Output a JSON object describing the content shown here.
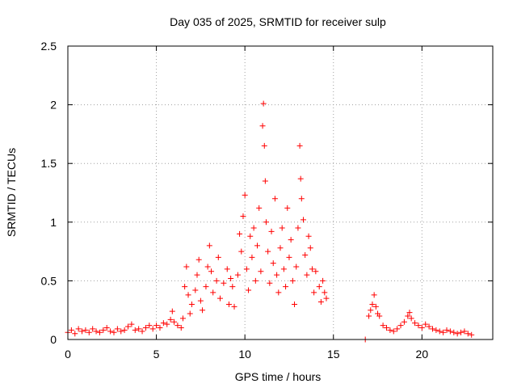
{
  "chart_data": {
    "type": "scatter",
    "title": "Day 035 of 2025, SRMTID for receiver sulp",
    "xlabel": "GPS time / hours",
    "ylabel": "SRMTID / TECUs",
    "xlim": [
      0,
      24
    ],
    "ylim": [
      0,
      2.5
    ],
    "xticks": [
      0,
      5,
      10,
      15,
      20
    ],
    "yticks": [
      0,
      0.5,
      1,
      1.5,
      2,
      2.5
    ],
    "xtick_labels": [
      "0",
      "5",
      "10",
      "15",
      "20"
    ],
    "ytick_labels": [
      "0",
      "0.5",
      "1",
      "1.5",
      "2",
      "2.5"
    ],
    "grid": true,
    "marker": "+",
    "series": [
      {
        "name": "SRMTID",
        "color": "#ff0000",
        "points": [
          [
            0.0,
            0.06
          ],
          [
            0.2,
            0.08
          ],
          [
            0.4,
            0.05
          ],
          [
            0.6,
            0.09
          ],
          [
            0.8,
            0.07
          ],
          [
            1.0,
            0.08
          ],
          [
            1.2,
            0.06
          ],
          [
            1.4,
            0.09
          ],
          [
            1.6,
            0.07
          ],
          [
            1.8,
            0.06
          ],
          [
            2.0,
            0.08
          ],
          [
            2.2,
            0.1
          ],
          [
            2.4,
            0.07
          ],
          [
            2.6,
            0.06
          ],
          [
            2.8,
            0.09
          ],
          [
            3.0,
            0.07
          ],
          [
            3.2,
            0.08
          ],
          [
            3.4,
            0.11
          ],
          [
            3.6,
            0.13
          ],
          [
            3.8,
            0.08
          ],
          [
            4.0,
            0.09
          ],
          [
            4.2,
            0.07
          ],
          [
            4.4,
            0.1
          ],
          [
            4.6,
            0.12
          ],
          [
            4.8,
            0.09
          ],
          [
            5.0,
            0.12
          ],
          [
            5.2,
            0.1
          ],
          [
            5.4,
            0.14
          ],
          [
            5.6,
            0.13
          ],
          [
            5.8,
            0.17
          ],
          [
            5.9,
            0.24
          ],
          [
            6.0,
            0.15
          ],
          [
            6.2,
            0.12
          ],
          [
            6.4,
            0.1
          ],
          [
            6.5,
            0.18
          ],
          [
            6.6,
            0.45
          ],
          [
            6.7,
            0.62
          ],
          [
            6.8,
            0.38
          ],
          [
            6.9,
            0.22
          ],
          [
            7.0,
            0.3
          ],
          [
            7.2,
            0.42
          ],
          [
            7.3,
            0.55
          ],
          [
            7.4,
            0.68
          ],
          [
            7.5,
            0.33
          ],
          [
            7.6,
            0.25
          ],
          [
            7.8,
            0.45
          ],
          [
            7.9,
            0.62
          ],
          [
            8.0,
            0.8
          ],
          [
            8.1,
            0.58
          ],
          [
            8.2,
            0.4
          ],
          [
            8.4,
            0.5
          ],
          [
            8.5,
            0.7
          ],
          [
            8.6,
            0.35
          ],
          [
            8.8,
            0.48
          ],
          [
            9.0,
            0.6
          ],
          [
            9.1,
            0.3
          ],
          [
            9.2,
            0.52
          ],
          [
            9.3,
            0.45
          ],
          [
            9.4,
            0.28
          ],
          [
            9.6,
            0.55
          ],
          [
            9.7,
            0.9
          ],
          [
            9.8,
            0.75
          ],
          [
            9.9,
            1.05
          ],
          [
            10.0,
            1.23
          ],
          [
            10.1,
            0.6
          ],
          [
            10.2,
            0.42
          ],
          [
            10.3,
            0.88
          ],
          [
            10.4,
            0.7
          ],
          [
            10.5,
            0.95
          ],
          [
            10.6,
            0.5
          ],
          [
            10.7,
            0.8
          ],
          [
            10.8,
            1.12
          ],
          [
            10.9,
            0.58
          ],
          [
            11.0,
            1.82
          ],
          [
            11.05,
            2.01
          ],
          [
            11.1,
            1.65
          ],
          [
            11.15,
            1.35
          ],
          [
            11.2,
            1.0
          ],
          [
            11.3,
            0.75
          ],
          [
            11.4,
            0.48
          ],
          [
            11.5,
            0.92
          ],
          [
            11.6,
            0.65
          ],
          [
            11.7,
            1.2
          ],
          [
            11.8,
            0.55
          ],
          [
            11.9,
            0.4
          ],
          [
            12.0,
            0.78
          ],
          [
            12.1,
            0.95
          ],
          [
            12.2,
            0.6
          ],
          [
            12.3,
            0.45
          ],
          [
            12.4,
            1.12
          ],
          [
            12.5,
            0.7
          ],
          [
            12.6,
            0.85
          ],
          [
            12.7,
            0.5
          ],
          [
            12.8,
            0.3
          ],
          [
            12.9,
            0.62
          ],
          [
            13.0,
            0.95
          ],
          [
            13.1,
            1.65
          ],
          [
            13.15,
            1.37
          ],
          [
            13.2,
            1.2
          ],
          [
            13.3,
            1.02
          ],
          [
            13.4,
            0.72
          ],
          [
            13.5,
            0.55
          ],
          [
            13.6,
            0.88
          ],
          [
            13.7,
            0.78
          ],
          [
            13.8,
            0.6
          ],
          [
            13.9,
            0.4
          ],
          [
            14.0,
            0.58
          ],
          [
            14.2,
            0.45
          ],
          [
            14.3,
            0.32
          ],
          [
            14.4,
            0.5
          ],
          [
            14.5,
            0.4
          ],
          [
            14.6,
            0.35
          ],
          [
            16.8,
            0.0
          ],
          [
            17.0,
            0.2
          ],
          [
            17.1,
            0.25
          ],
          [
            17.2,
            0.3
          ],
          [
            17.3,
            0.38
          ],
          [
            17.4,
            0.28
          ],
          [
            17.5,
            0.22
          ],
          [
            17.6,
            0.2
          ],
          [
            17.8,
            0.12
          ],
          [
            18.0,
            0.1
          ],
          [
            18.2,
            0.08
          ],
          [
            18.4,
            0.07
          ],
          [
            18.6,
            0.09
          ],
          [
            18.8,
            0.12
          ],
          [
            19.0,
            0.15
          ],
          [
            19.2,
            0.2
          ],
          [
            19.3,
            0.23
          ],
          [
            19.4,
            0.18
          ],
          [
            19.6,
            0.14
          ],
          [
            19.8,
            0.12
          ],
          [
            20.0,
            0.1
          ],
          [
            20.2,
            0.13
          ],
          [
            20.4,
            0.11
          ],
          [
            20.6,
            0.09
          ],
          [
            20.8,
            0.08
          ],
          [
            21.0,
            0.07
          ],
          [
            21.2,
            0.06
          ],
          [
            21.4,
            0.08
          ],
          [
            21.6,
            0.07
          ],
          [
            21.8,
            0.06
          ],
          [
            22.0,
            0.05
          ],
          [
            22.2,
            0.06
          ],
          [
            22.4,
            0.07
          ],
          [
            22.6,
            0.05
          ],
          [
            22.8,
            0.04
          ]
        ]
      }
    ]
  }
}
